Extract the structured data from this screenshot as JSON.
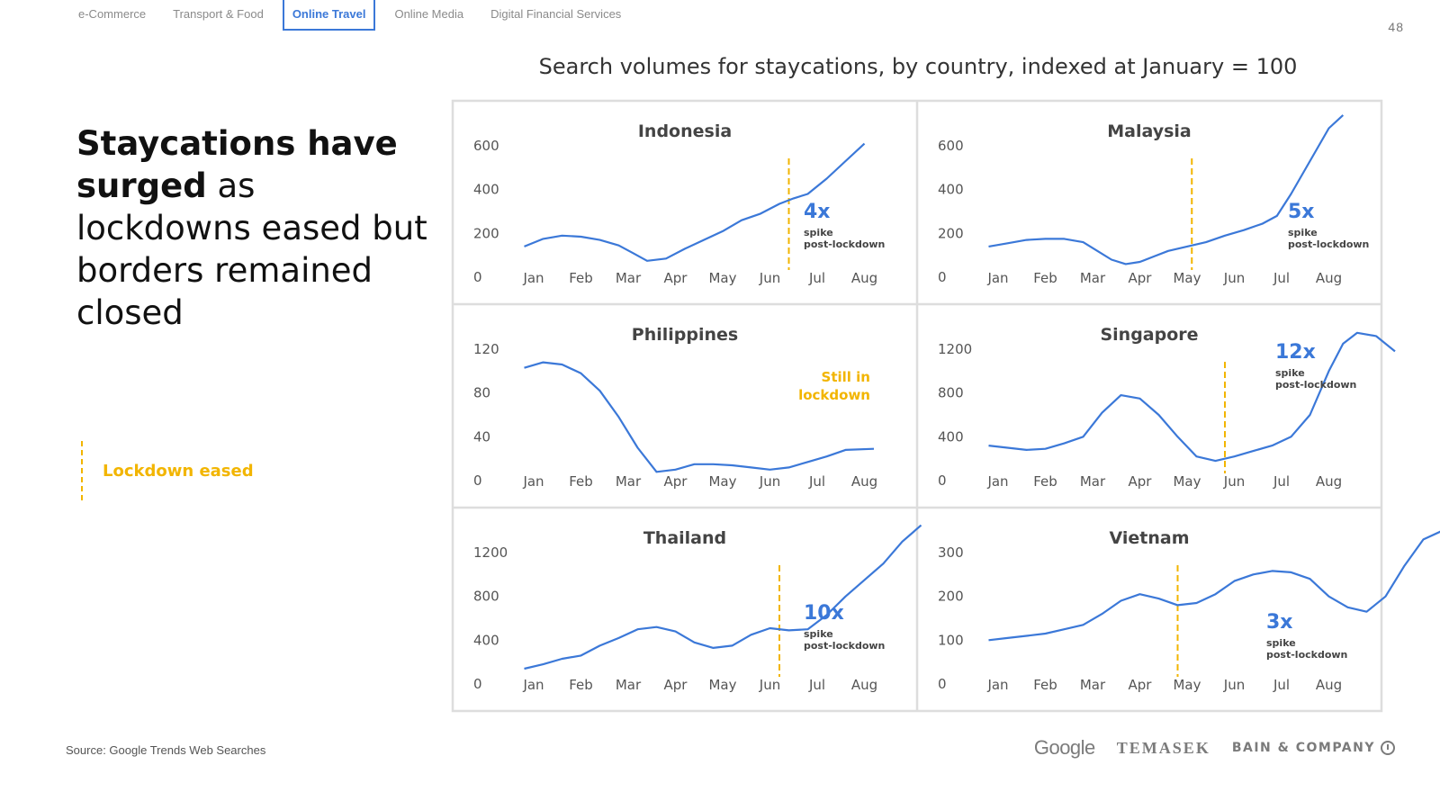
{
  "tabs": [
    {
      "label": "e-Commerce",
      "active": false
    },
    {
      "label": "Transport & Food",
      "active": false
    },
    {
      "label": "Online Travel",
      "active": true
    },
    {
      "label": "Online Media",
      "active": false
    },
    {
      "label": "Digital Financial Services",
      "active": false
    }
  ],
  "page_number": "48",
  "headline": {
    "bold": "Staycations have surged",
    "rest": " as lockdowns eased but borders remained closed"
  },
  "legend": {
    "label": "Lockdown eased",
    "color": "#f2b500"
  },
  "source": "Source: Google Trends Web Searches",
  "logos": {
    "google": "Google",
    "temasek": "TEMASEK",
    "bain": "BAIN & COMPANY"
  },
  "colors": {
    "line": "#3b78d8",
    "lockdown": "#f2b500",
    "border": "#dddddd"
  },
  "chart_data": {
    "type": "line",
    "title": "Search volumes for staycations, by country, indexed at January = 100",
    "months": [
      "Jan",
      "Feb",
      "Mar",
      "Apr",
      "May",
      "Jun",
      "Jul",
      "Aug"
    ],
    "panels": [
      {
        "title": "Indonesia",
        "yticks": [
          "0",
          "200",
          "400",
          "600"
        ],
        "ylim": [
          0,
          600
        ],
        "lockdown_eased_x": 6.4,
        "annotation": {
          "big": "4x",
          "lines": [
            "spike",
            "post-lockdown"
          ]
        },
        "points": [
          [
            0.8,
            140
          ],
          [
            1.2,
            175
          ],
          [
            1.6,
            190
          ],
          [
            2.0,
            185
          ],
          [
            2.4,
            170
          ],
          [
            2.8,
            145
          ],
          [
            3.1,
            110
          ],
          [
            3.4,
            75
          ],
          [
            3.8,
            85
          ],
          [
            4.2,
            130
          ],
          [
            4.6,
            170
          ],
          [
            5.0,
            210
          ],
          [
            5.4,
            260
          ],
          [
            5.8,
            290
          ],
          [
            6.2,
            335
          ],
          [
            6.5,
            360
          ],
          [
            6.8,
            380
          ],
          [
            7.2,
            450
          ],
          [
            7.6,
            530
          ],
          [
            8.0,
            610
          ]
        ]
      },
      {
        "title": "Malaysia",
        "yticks": [
          "0",
          "200",
          "400",
          "600"
        ],
        "ylim": [
          0,
          600
        ],
        "lockdown_eased_x": 5.1,
        "annotation": {
          "big": "5x",
          "lines": [
            "spike",
            "post-lockdown"
          ]
        },
        "points": [
          [
            0.8,
            140
          ],
          [
            1.2,
            155
          ],
          [
            1.6,
            170
          ],
          [
            2.0,
            175
          ],
          [
            2.4,
            175
          ],
          [
            2.8,
            160
          ],
          [
            3.1,
            120
          ],
          [
            3.4,
            80
          ],
          [
            3.7,
            60
          ],
          [
            4.0,
            70
          ],
          [
            4.3,
            95
          ],
          [
            4.6,
            120
          ],
          [
            5.0,
            140
          ],
          [
            5.4,
            160
          ],
          [
            5.8,
            190
          ],
          [
            6.2,
            215
          ],
          [
            6.6,
            245
          ],
          [
            6.9,
            280
          ],
          [
            7.2,
            380
          ],
          [
            7.6,
            530
          ],
          [
            8.0,
            680
          ],
          [
            8.3,
            740
          ]
        ]
      },
      {
        "title": "Philippines",
        "yticks": [
          "0",
          "40",
          "80",
          "120"
        ],
        "ylim": [
          0,
          120
        ],
        "lockdown_eased_x": null,
        "annotation": {
          "yellow": [
            "Still in",
            "lockdown"
          ]
        },
        "points": [
          [
            0.8,
            103
          ],
          [
            1.2,
            108
          ],
          [
            1.6,
            106
          ],
          [
            2.0,
            98
          ],
          [
            2.4,
            82
          ],
          [
            2.8,
            58
          ],
          [
            3.2,
            30
          ],
          [
            3.6,
            8
          ],
          [
            4.0,
            10
          ],
          [
            4.4,
            15
          ],
          [
            4.8,
            15
          ],
          [
            5.2,
            14
          ],
          [
            5.6,
            12
          ],
          [
            6.0,
            10
          ],
          [
            6.4,
            12
          ],
          [
            6.8,
            17
          ],
          [
            7.2,
            22
          ],
          [
            7.6,
            28
          ],
          [
            8.2,
            29
          ]
        ]
      },
      {
        "title": "Singapore",
        "yticks": [
          "0",
          "400",
          "800",
          "1200"
        ],
        "ylim": [
          0,
          1200
        ],
        "lockdown_eased_x": 5.8,
        "annotation": {
          "big": "12x",
          "lines": [
            "spike",
            "post-lockdown"
          ]
        },
        "points": [
          [
            0.8,
            320
          ],
          [
            1.2,
            300
          ],
          [
            1.6,
            280
          ],
          [
            2.0,
            290
          ],
          [
            2.4,
            340
          ],
          [
            2.8,
            400
          ],
          [
            3.2,
            620
          ],
          [
            3.6,
            780
          ],
          [
            4.0,
            750
          ],
          [
            4.4,
            600
          ],
          [
            4.8,
            400
          ],
          [
            5.2,
            220
          ],
          [
            5.6,
            180
          ],
          [
            6.0,
            220
          ],
          [
            6.4,
            270
          ],
          [
            6.8,
            320
          ],
          [
            7.2,
            400
          ],
          [
            7.6,
            600
          ],
          [
            8.0,
            1000
          ],
          [
            8.3,
            1250
          ],
          [
            8.6,
            1350
          ],
          [
            9.0,
            1320
          ],
          [
            9.4,
            1180
          ]
        ]
      },
      {
        "title": "Thailand",
        "yticks": [
          "0",
          "400",
          "800",
          "1200"
        ],
        "ylim": [
          0,
          1200
        ],
        "lockdown_eased_x": 6.2,
        "annotation": {
          "big": "10x",
          "lines": [
            "spike",
            "post-lockdown"
          ]
        },
        "points": [
          [
            0.8,
            140
          ],
          [
            1.2,
            180
          ],
          [
            1.6,
            230
          ],
          [
            2.0,
            260
          ],
          [
            2.4,
            350
          ],
          [
            2.8,
            420
          ],
          [
            3.2,
            500
          ],
          [
            3.6,
            520
          ],
          [
            4.0,
            480
          ],
          [
            4.4,
            380
          ],
          [
            4.8,
            330
          ],
          [
            5.2,
            350
          ],
          [
            5.6,
            450
          ],
          [
            6.0,
            510
          ],
          [
            6.4,
            490
          ],
          [
            6.8,
            500
          ],
          [
            7.2,
            630
          ],
          [
            7.6,
            800
          ],
          [
            8.0,
            950
          ],
          [
            8.4,
            1100
          ],
          [
            8.8,
            1300
          ],
          [
            9.2,
            1450
          ]
        ]
      },
      {
        "title": "Vietnam",
        "yticks": [
          "0",
          "100",
          "200",
          "300"
        ],
        "ylim": [
          0,
          300
        ],
        "lockdown_eased_x": 4.8,
        "annotation": {
          "big": "3x",
          "lines": [
            "spike",
            "post-lockdown"
          ]
        },
        "points": [
          [
            0.8,
            100
          ],
          [
            1.2,
            105
          ],
          [
            1.6,
            110
          ],
          [
            2.0,
            115
          ],
          [
            2.4,
            125
          ],
          [
            2.8,
            135
          ],
          [
            3.2,
            160
          ],
          [
            3.6,
            190
          ],
          [
            4.0,
            205
          ],
          [
            4.4,
            195
          ],
          [
            4.8,
            180
          ],
          [
            5.2,
            185
          ],
          [
            5.6,
            205
          ],
          [
            6.0,
            235
          ],
          [
            6.4,
            250
          ],
          [
            6.8,
            258
          ],
          [
            7.2,
            255
          ],
          [
            7.6,
            240
          ],
          [
            8.0,
            200
          ],
          [
            8.4,
            175
          ],
          [
            8.8,
            165
          ],
          [
            9.2,
            200
          ],
          [
            9.6,
            270
          ],
          [
            10.0,
            330
          ],
          [
            10.4,
            350
          ]
        ]
      }
    ]
  }
}
